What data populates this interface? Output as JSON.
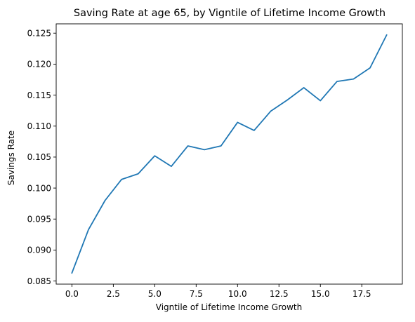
{
  "chart_data": {
    "type": "line",
    "title": "Saving Rate at age 65, by Vigntile of Lifetime Income Growth",
    "xlabel": "Vigntile of Lifetime Income Growth",
    "ylabel": "Savings Rate",
    "xlim": [
      -0.95,
      19.95
    ],
    "ylim": [
      0.0845,
      0.1265
    ],
    "x_ticks": [
      0.0,
      2.5,
      5.0,
      7.5,
      10.0,
      12.5,
      15.0,
      17.5
    ],
    "x_tick_labels": [
      "0.0",
      "2.5",
      "5.0",
      "7.5",
      "10.0",
      "12.5",
      "15.0",
      "17.5"
    ],
    "y_ticks": [
      0.085,
      0.09,
      0.095,
      0.1,
      0.105,
      0.11,
      0.115,
      0.12,
      0.125
    ],
    "y_tick_labels": [
      "0.085",
      "0.090",
      "0.095",
      "0.100",
      "0.105",
      "0.110",
      "0.115",
      "0.120",
      "0.125"
    ],
    "grid": false,
    "legend": "none",
    "series": [
      {
        "color": "#1f77b4",
        "x": [
          0,
          1,
          2,
          3,
          4,
          5,
          6,
          7,
          8,
          9,
          10,
          11,
          12,
          13,
          14,
          15,
          16,
          17,
          18,
          19
        ],
        "y": [
          0.0863,
          0.0933,
          0.098,
          0.1014,
          0.1023,
          0.1052,
          0.1035,
          0.1068,
          0.1062,
          0.1068,
          0.1106,
          0.1093,
          0.1124,
          0.1142,
          0.1162,
          0.1141,
          0.1172,
          0.1176,
          0.1194,
          0.1247
        ]
      }
    ]
  }
}
